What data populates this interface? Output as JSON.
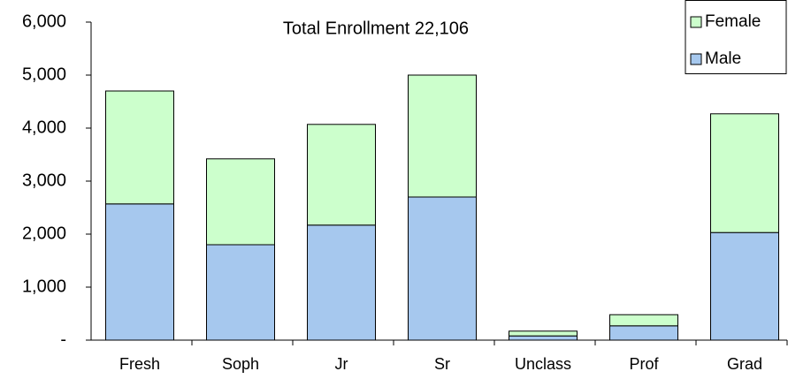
{
  "chart_data": {
    "type": "stacked_bar",
    "title": "Total Enrollment 22,106",
    "categories": [
      "Fresh",
      "Soph",
      "Jr",
      "Sr",
      "Unclass",
      "Prof",
      "Grad"
    ],
    "series": [
      {
        "name": "Male",
        "color": "#a6c8ee",
        "values": [
          2570,
          1800,
          2170,
          2700,
          80,
          270,
          2030
        ]
      },
      {
        "name": "Female",
        "color": "#ccffcc",
        "values": [
          2130,
          1620,
          1900,
          2300,
          90,
          210,
          2240
        ]
      }
    ],
    "ylim": [
      0,
      6000
    ],
    "yticks": [
      {
        "value": 0,
        "label": "-"
      },
      {
        "value": 1000,
        "label": "1,000"
      },
      {
        "value": 2000,
        "label": "2,000"
      },
      {
        "value": 3000,
        "label": "3,000"
      },
      {
        "value": 4000,
        "label": "4,000"
      },
      {
        "value": 5000,
        "label": "5,000"
      },
      {
        "value": 6000,
        "label": "6,000"
      }
    ],
    "legend": "top-right"
  }
}
